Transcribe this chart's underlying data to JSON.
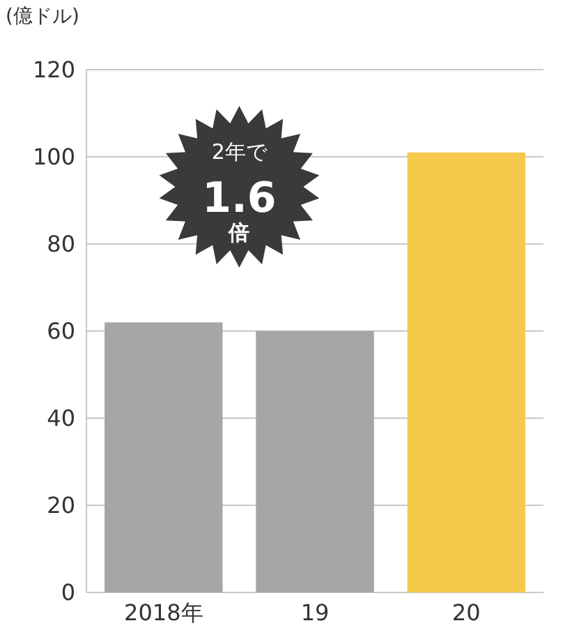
{
  "chart_data": {
    "type": "bar",
    "ylabel": "(億ドル)",
    "categories": [
      "2018年",
      "19",
      "20"
    ],
    "values": [
      62,
      60,
      101
    ],
    "colors": [
      "#a6a6a6",
      "#a6a6a6",
      "#f5c94c"
    ],
    "ylim": [
      0,
      120
    ],
    "yticks": [
      0,
      20,
      40,
      60,
      80,
      100,
      120
    ],
    "grid": "y",
    "annotations": [
      "2年で",
      "1.6",
      "倍"
    ]
  }
}
